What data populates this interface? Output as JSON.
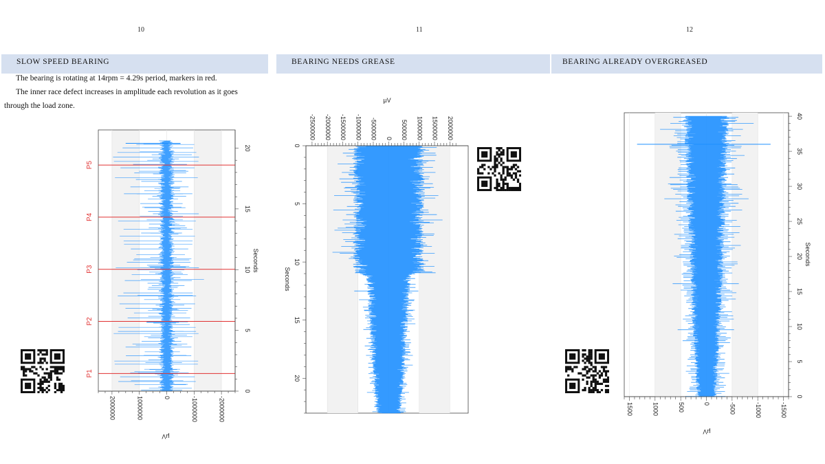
{
  "pages": [
    {
      "number": "10",
      "heading": "SLOW SPEED BEARING",
      "paragraph1": "The bearing is rotating at 14rpm = 4.29s period, markers in red.",
      "paragraph2_line1": "The inner race defect increases in amplitude each revolution as it goes",
      "paragraph2_line2": "through the load zone.",
      "chart_a": {
        "type": "line",
        "xlabel": "µV",
        "ylabel": "Seconds",
        "x_ticks": [
          "2000000",
          "1000000",
          "0",
          "-1000000",
          "-2000000"
        ],
        "y_ticks": [
          "0",
          "5",
          "10",
          "15",
          "20"
        ],
        "markers": [
          "P1",
          "P2",
          "P3",
          "P4",
          "P5"
        ]
      }
    },
    {
      "number": "11",
      "heading": "BEARING NEEDS GREASE",
      "chart_b": {
        "type": "line",
        "xlabel": "µV",
        "ylabel": "Seconds",
        "x_ticks": [
          "-2500000",
          "-2000000",
          "-1500000",
          "-1000000",
          "-500000",
          "0",
          "500000",
          "1000000",
          "1500000",
          "2000000"
        ],
        "y_ticks": [
          "0",
          "5",
          "10",
          "15",
          "20"
        ]
      }
    },
    {
      "number": "12",
      "heading": "BEARING ALREADY OVERGREASED",
      "chart_c": {
        "type": "line",
        "xlabel": "µV",
        "ylabel": "Seconds",
        "x_ticks": [
          "1500",
          "1000",
          "500",
          "0",
          "-500",
          "-1000",
          "-1500"
        ],
        "y_ticks": [
          "0",
          "5",
          "10",
          "15",
          "20",
          "25",
          "30",
          "35",
          "40"
        ]
      }
    }
  ],
  "chart_data": [
    {
      "type": "line",
      "title": "",
      "xlabel": "µV",
      "ylabel": "Seconds",
      "xlim": [
        -2500000,
        2500000
      ],
      "ylim": [
        0,
        21.5
      ],
      "markers": [
        {
          "label": "P1",
          "seconds": 1.45
        },
        {
          "label": "P2",
          "seconds": 5.74
        },
        {
          "label": "P3",
          "seconds": 10.03
        },
        {
          "label": "P4",
          "seconds": 14.32
        },
        {
          "label": "P5",
          "seconds": 18.61
        }
      ],
      "color": "#1e8fff",
      "marker_color": "#e03030"
    },
    {
      "type": "line",
      "title": "",
      "xlabel": "µV",
      "ylabel": "Seconds",
      "xlim": [
        -2500000,
        2500000
      ],
      "ylim": [
        0,
        23
      ],
      "envelope": [
        {
          "t": 0,
          "halfwidth": 1100000
        },
        {
          "t": 10.8,
          "halfwidth": 1100000
        },
        {
          "t": 11.2,
          "halfwidth": 700000
        },
        {
          "t": 17,
          "halfwidth": 560000
        },
        {
          "t": 23,
          "halfwidth": 380000
        }
      ],
      "color": "#1e8fff"
    },
    {
      "type": "line",
      "title": "",
      "xlabel": "µV",
      "ylabel": "Seconds",
      "xlim": [
        -1500,
        1500
      ],
      "ylim": [
        0,
        40
      ],
      "envelope": [
        {
          "t": 0,
          "halfwidth": 180
        },
        {
          "t": 10,
          "halfwidth": 260
        },
        {
          "t": 25,
          "halfwidth": 350
        },
        {
          "t": 40,
          "halfwidth": 420
        }
      ],
      "color": "#1e8fff"
    }
  ]
}
